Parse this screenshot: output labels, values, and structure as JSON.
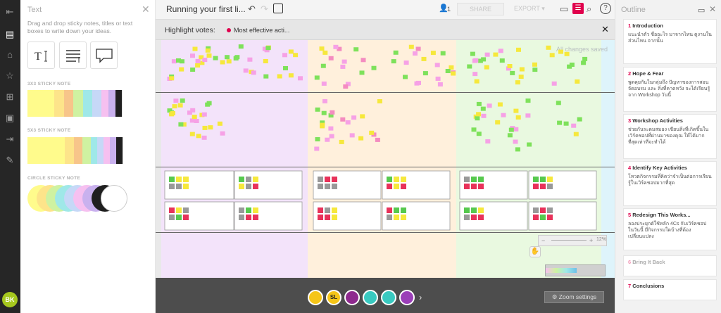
{
  "left_panel": {
    "title": "Text",
    "description": "Drag and drop sticky notes, titles or text boxes to write down your ideas.",
    "section_3x3": "3X3 STICKY NOTE",
    "section_5x3": "5X3 STICKY NOTE",
    "section_circle": "CIRCLE STICKY NOTE",
    "sticky_colors": [
      "#fffb8c",
      "#fde48a",
      "#f7c58a",
      "#cff2a1",
      "#9fe8e8",
      "#c6d8f7",
      "#f6c0f0",
      "#c9b1ee",
      "#1f1f1f",
      "#ffffff"
    ],
    "circle_colors": [
      "#fffb8c",
      "#fde48a",
      "#cff2a1",
      "#9fe8e8",
      "#c6d8f7",
      "#f6c0f0",
      "#c9b1ee",
      "#1f1f1f",
      "#ffffff"
    ]
  },
  "topbar": {
    "title": "Running your first li...",
    "collaborators": "1",
    "share_label": "SHARE",
    "export_label": "EXPORT"
  },
  "highlight": {
    "label": "Highlight votes:",
    "option": "Most effective acti..."
  },
  "board": {
    "saved_status": "All changes saved",
    "zoom_level": "12%",
    "zoom_settings_label": "Zoom settings",
    "column_colors": [
      "#f3e3fa",
      "#fff0dc",
      "#e9f9e0",
      "#def4fb"
    ]
  },
  "footer": {
    "avatars": [
      {
        "initials": "",
        "color": "#f5c518"
      },
      {
        "initials": "SL",
        "color": "#f5c518"
      },
      {
        "initials": "",
        "color": "#8e2a8e"
      },
      {
        "initials": "",
        "color": "#39c9c0"
      },
      {
        "initials": "",
        "color": "#39c9c0"
      },
      {
        "initials": "",
        "color": "#9b3fb8"
      }
    ]
  },
  "user": {
    "initials": "BK",
    "color": "#a6c81e"
  },
  "outline": {
    "title": "Outline",
    "items": [
      {
        "num": "1",
        "title": "Introduction",
        "text": "แนะนำตัว ชื่ออะไร มาจากไหน ดูงานในส่วนไหน จากนั้น"
      },
      {
        "num": "2",
        "title": "Hope & Fear",
        "text": "พูดคุยกันในกลุ่มถึง ปัญหาของการสอนจัดอบรม และ สิ่งที่คาดหวัง จะได้เรียนรู้จาก Workshop วันนี้"
      },
      {
        "num": "3",
        "title": "Workshop Activities",
        "text": "ช่วยกันระดมสมอง เขียนสิ่งที่เกิดขึ้นในเวิร์คชอปที่ผ่านมาของคุณ ให้ได้มากที่สุดเท่าที่จะทำได้"
      },
      {
        "num": "4",
        "title": "Identify Key Activities",
        "text": "โหวตกิจกรรมที่คิดว่าจำเป็นต่อการเรียนรู้ในเวิร์คชอปมากที่สุด"
      },
      {
        "num": "5",
        "title": "Redesign This Works...",
        "text": "ลองประยุกต์ใช้หลัก 4Cs กับเวิร์คชอปในวันนี้ มีกิจกรรมใดบ้างที่ต้องเปลี่ยนแปลง"
      },
      {
        "num": "6",
        "title": "Bring It Back",
        "text": ""
      },
      {
        "num": "7",
        "title": "Conclusions",
        "text": ""
      }
    ]
  }
}
